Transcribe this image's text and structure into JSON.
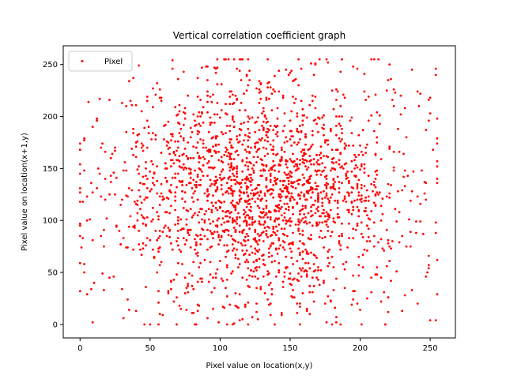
{
  "chart_data": {
    "type": "scatter",
    "title": "Vertical correlation coefficient graph",
    "xlabel": "Pixel value on location(x,y)",
    "ylabel": "Pixel value on location(x+1,y)",
    "xlim": [
      -12,
      268
    ],
    "ylim": [
      -13,
      268
    ],
    "xticks": [
      0,
      50,
      100,
      150,
      200,
      250
    ],
    "yticks": [
      0,
      50,
      100,
      150,
      200,
      250
    ],
    "grid": false,
    "legend_position": "top-left",
    "series": [
      {
        "name": "Pixel",
        "color": "#ff0000",
        "marker": "point",
        "generation": {
          "count": 2200,
          "seed": 7,
          "x_center": 128,
          "x_spread": 50,
          "y_center": 128,
          "y_spread": 52,
          "min": 0,
          "max": 255
        }
      }
    ]
  }
}
